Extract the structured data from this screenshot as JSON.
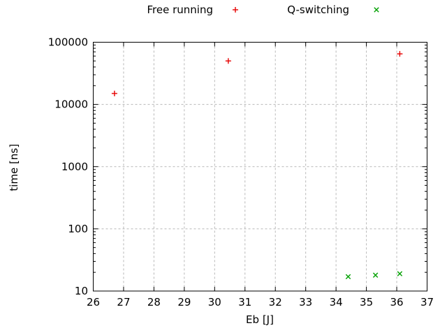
{
  "colors": {
    "background": "#ffffff",
    "axis": "#000000",
    "grid": "#b8b8b8",
    "text": "#000000",
    "free_running": "#e60000",
    "q_switching": "#00a000"
  },
  "legend": {
    "position": "top-center",
    "items": [
      {
        "label": "Free running",
        "marker": "plus",
        "color": "#e60000"
      },
      {
        "label": "Q-switching",
        "marker": "cross",
        "color": "#00a000"
      }
    ]
  },
  "chart_data": {
    "type": "scatter",
    "title": "",
    "xlabel": "Eb [J]",
    "ylabel": "time [ns]",
    "xlim": [
      26,
      37
    ],
    "ylim": [
      10,
      100000
    ],
    "xscale": "linear",
    "yscale": "log",
    "xticks": [
      26,
      27,
      28,
      29,
      30,
      31,
      32,
      33,
      34,
      35,
      36,
      37
    ],
    "yticks": [
      10,
      100,
      1000,
      10000,
      100000
    ],
    "grid": true,
    "legend_position": "top-center",
    "series": [
      {
        "name": "Free running",
        "marker": "plus",
        "color": "#e60000",
        "points": [
          [
            26.7,
            15000
          ],
          [
            30.45,
            50000
          ],
          [
            36.1,
            65000
          ]
        ]
      },
      {
        "name": "Q-switching",
        "marker": "cross",
        "color": "#00a000",
        "points": [
          [
            34.4,
            17
          ],
          [
            35.3,
            18
          ],
          [
            36.1,
            19
          ]
        ]
      }
    ]
  }
}
